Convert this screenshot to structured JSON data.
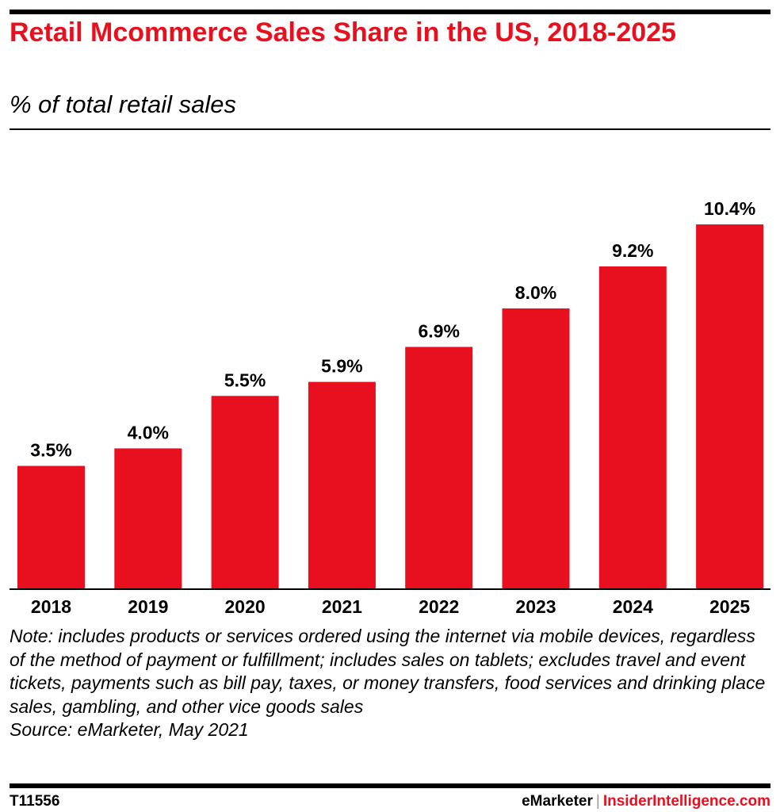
{
  "title": "Retail Mcommerce Sales Share in the US, 2018-2025",
  "subtitle": "% of total retail sales",
  "note": "Note: includes products or services ordered using the internet via mobile devices, regardless of the method of payment or fulfillment; includes sales on tablets; excludes travel and event tickets, payments such as bill pay, taxes, or money transfers, food services and drinking place sales, gambling, and other vice goods sales",
  "source": "Source: eMarketer, May 2021",
  "footer": {
    "chart_id": "T11556",
    "brand_emarketer": "eMarketer",
    "separator": "|",
    "brand_insider": "InsiderIntelligence.com"
  },
  "colors": {
    "bar": "#e8101e",
    "title": "#e8101e"
  },
  "chart_data": {
    "type": "bar",
    "categories": [
      "2018",
      "2019",
      "2020",
      "2021",
      "2022",
      "2023",
      "2024",
      "2025"
    ],
    "values": [
      3.5,
      4.0,
      5.5,
      5.9,
      6.9,
      8.0,
      9.2,
      10.4
    ],
    "labels": [
      "3.5%",
      "4.0%",
      "5.5%",
      "5.9%",
      "6.9%",
      "8.0%",
      "9.2%",
      "10.4%"
    ],
    "title": "Retail Mcommerce Sales Share in the US, 2018-2025",
    "subtitle": "% of total retail sales",
    "xlabel": "",
    "ylabel": "",
    "ylim": [
      0,
      10.4
    ],
    "grid": false
  }
}
